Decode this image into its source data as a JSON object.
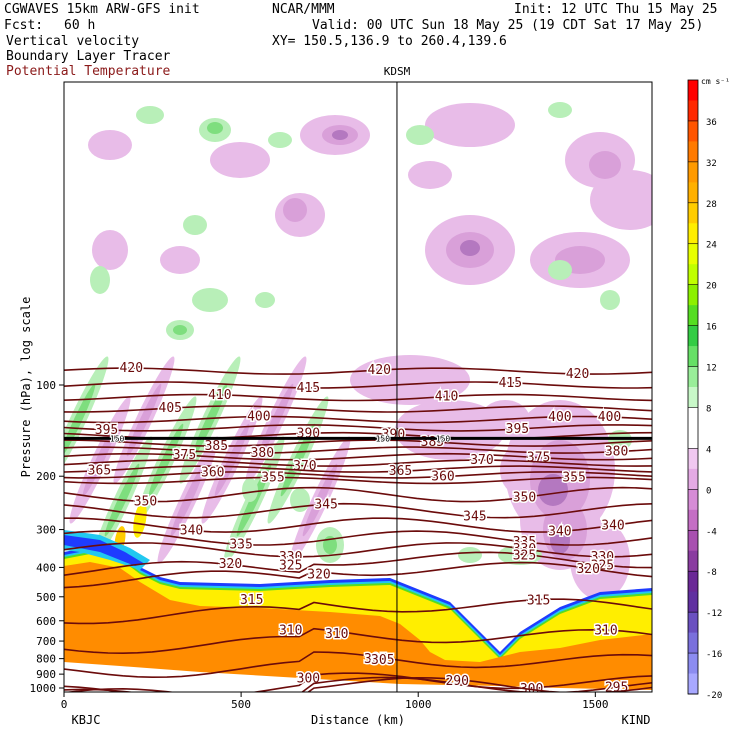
{
  "header": {
    "model": "CGWAVES 15km ARW-GFS init",
    "fcst_label": "Fcst:",
    "fcst_value": "60 h",
    "field1": "Vertical velocity",
    "field2": "Boundary Layer Tracer",
    "field3": "Potential Temperature",
    "org": "NCAR/MMM",
    "init": "Init: 12 UTC Thu 15 May 25",
    "valid": "Valid: 00 UTC Sun 18 May 25 (19 CDT Sat 17 May 25)",
    "xy": "XY= 150.5,136.9 to 260.4,139.6"
  },
  "colors": {
    "theta_line": "#6b0b0b",
    "field3_text": "#8b1a1a"
  },
  "chart_data": {
    "type": "heatmap",
    "station_marker": "KDSM",
    "station_x_km": 940,
    "xlabel": "Distance (km)",
    "ylabel": "Pressure (hPa), log scale",
    "x_start_label": "KBJC",
    "x_end_label": "KIND",
    "xlim": [
      0,
      1660
    ],
    "x_ticks": [
      0,
      500,
      1000,
      1500
    ],
    "y_ticks": [
      100,
      200,
      300,
      400,
      500,
      600,
      700,
      800,
      900,
      1000
    ],
    "y_scale": "log",
    "colorbar": {
      "unit": "cm s⁻¹",
      "labels": [
        36,
        32,
        28,
        24,
        20,
        16,
        12,
        8,
        4,
        0,
        -4,
        -8,
        -12,
        -16,
        -20
      ],
      "colors": [
        "#ff0000",
        "#ff2800",
        "#ff5500",
        "#ff7a00",
        "#ff9a00",
        "#ffb000",
        "#ffcc00",
        "#ffee00",
        "#e8ff00",
        "#c0ff00",
        "#8cf000",
        "#55dd22",
        "#33cc44",
        "#66e066",
        "#99ee99",
        "#c8f8c8",
        "#ffffff",
        "#ffffff",
        "#f0c8f0",
        "#e4aae4",
        "#d68cd6",
        "#c46ec4",
        "#a850b0",
        "#8a3ca0",
        "#6a2896",
        "#6030a0",
        "#6a50c0",
        "#7a70dc",
        "#8c8cf0",
        "#a8a8ff"
      ]
    },
    "isentropes": [
      {
        "value": 420,
        "label_x_km": [
          190,
          890,
          1450
        ]
      },
      {
        "value": 415,
        "label_x_km": [
          690,
          1260
        ]
      },
      {
        "value": 410,
        "label_x_km": [
          440,
          1080
        ]
      },
      {
        "value": 405,
        "label_x_km": [
          300
        ]
      },
      {
        "value": 400,
        "label_x_km": [
          550,
          1400,
          1540
        ]
      },
      {
        "value": 395,
        "label_x_km": [
          120,
          1280
        ]
      },
      {
        "value": 390,
        "label_x_km": [
          690,
          930
        ]
      },
      {
        "value": 385,
        "label_x_km": [
          430,
          1040
        ]
      },
      {
        "value": 380,
        "label_x_km": [
          560,
          1560
        ]
      },
      {
        "value": 375,
        "label_x_km": [
          340,
          1340
        ]
      },
      {
        "value": 370,
        "label_x_km": [
          680,
          1180
        ]
      },
      {
        "value": 365,
        "label_x_km": [
          100,
          950
        ]
      },
      {
        "value": 360,
        "label_x_km": [
          420,
          1070
        ]
      },
      {
        "value": 355,
        "label_x_km": [
          590,
          1440
        ]
      },
      {
        "value": 350,
        "label_x_km": [
          230,
          1300
        ]
      },
      {
        "value": 345,
        "label_x_km": [
          740,
          1160
        ]
      },
      {
        "value": 340,
        "label_x_km": [
          360,
          1400,
          1550
        ]
      },
      {
        "value": 335,
        "label_x_km": [
          500,
          1300
        ]
      },
      {
        "value": 330,
        "label_x_km": [
          640,
          1300,
          1520
        ]
      },
      {
        "value": 325,
        "label_x_km": [
          640,
          1300,
          1520
        ]
      },
      {
        "value": 320,
        "label_x_km": [
          470,
          720,
          1480
        ]
      },
      {
        "value": 315,
        "label_x_km": [
          530,
          1340
        ]
      },
      {
        "value": 310,
        "label_x_km": [
          640,
          770,
          1530
        ]
      },
      {
        "value": 305,
        "label_x_km": [
          880,
          900
        ]
      },
      {
        "value": 300,
        "label_x_km": [
          690,
          1320
        ]
      },
      {
        "value": 295,
        "label_x_km": [
          1560
        ]
      },
      {
        "value": 290,
        "label_x_km": [
          1110
        ]
      }
    ],
    "annotations": [
      "150",
      "150",
      "150"
    ]
  }
}
